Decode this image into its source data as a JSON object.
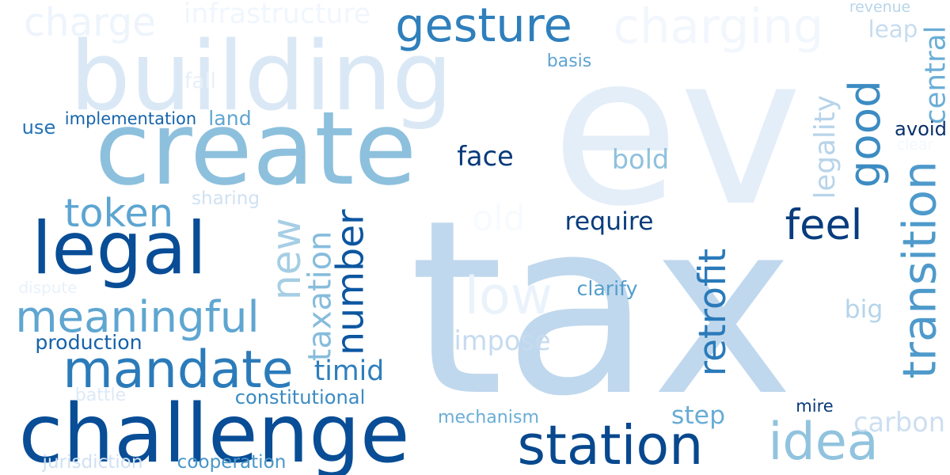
{
  "wordcloud": {
    "words": [
      {
        "text": "tax",
        "color": "#c0d8ed"
      },
      {
        "text": "ev",
        "color": "#e4eef9"
      },
      {
        "text": "building",
        "color": "#dae8f6"
      },
      {
        "text": "create",
        "color": "#8dc0dd"
      },
      {
        "text": "challenge",
        "color": "#084d96"
      },
      {
        "text": "legal",
        "color": "#084d96"
      },
      {
        "text": "station",
        "color": "#08488e"
      },
      {
        "text": "mandate",
        "color": "#2b7bba"
      },
      {
        "text": "gesture",
        "color": "#2f7fbc"
      },
      {
        "text": "charging",
        "color": "#f2f7fd"
      },
      {
        "text": "charge",
        "color": "#edf4fc"
      },
      {
        "text": "infrastructure",
        "color": "#f0f6fd"
      },
      {
        "text": "good",
        "color": "#3c8cc3"
      },
      {
        "text": "transition",
        "color": "#4e9acb"
      },
      {
        "text": "idea",
        "color": "#91c3de"
      },
      {
        "text": "retrofit",
        "color": "#2a7ab9"
      },
      {
        "text": "feel",
        "color": "#083c7d"
      },
      {
        "text": "meaningful",
        "color": "#5fa6d1"
      },
      {
        "text": "new",
        "color": "#a6cee4"
      },
      {
        "text": "number",
        "color": "#0c56a0"
      },
      {
        "text": "token",
        "color": "#5da5d1"
      },
      {
        "text": "low",
        "color": "#eaf3fb"
      },
      {
        "text": "old",
        "color": "#f7fbff"
      },
      {
        "text": "taxation",
        "color": "#86bcdc"
      },
      {
        "text": "legality",
        "color": "#b7d4ea"
      },
      {
        "text": "central",
        "color": "#6aaed6"
      },
      {
        "text": "require",
        "color": "#083c7d"
      },
      {
        "text": "face",
        "color": "#083a7a"
      },
      {
        "text": "bold",
        "color": "#8fc1de"
      },
      {
        "text": "impose",
        "color": "#c6dbef"
      },
      {
        "text": "carbon",
        "color": "#cddff1"
      },
      {
        "text": "step",
        "color": "#68acd5"
      },
      {
        "text": "timid",
        "color": "#2e7ebc"
      },
      {
        "text": "big",
        "color": "#b5d4e9"
      },
      {
        "text": "leap",
        "color": "#c7dcef"
      },
      {
        "text": "constitutional",
        "color": "#3a8ac2"
      },
      {
        "text": "production",
        "color": "#1561a9"
      },
      {
        "text": "land",
        "color": "#5fa6d1"
      },
      {
        "text": "implementation",
        "color": "#1764ab"
      },
      {
        "text": "use",
        "color": "#2272b6"
      },
      {
        "text": "clarify",
        "color": "#529dcc"
      },
      {
        "text": "avoid",
        "color": "#08306b"
      },
      {
        "text": "mechanism",
        "color": "#6aaed6"
      },
      {
        "text": "cooperation",
        "color": "#4896c8"
      },
      {
        "text": "mire",
        "color": "#083979"
      },
      {
        "text": "basis",
        "color": "#5ea5d1"
      },
      {
        "text": "revenue",
        "color": "#b8d5ea"
      },
      {
        "text": "sharing",
        "color": "#d0e1f2"
      },
      {
        "text": "fall",
        "color": "#e7f0fa"
      },
      {
        "text": "dispute",
        "color": "#e8f1fa"
      },
      {
        "text": "battle",
        "color": "#dde9f7"
      },
      {
        "text": "jurisdiction",
        "color": "#cfe1f2"
      },
      {
        "text": "clear",
        "color": "#f2f8fd"
      }
    ]
  }
}
